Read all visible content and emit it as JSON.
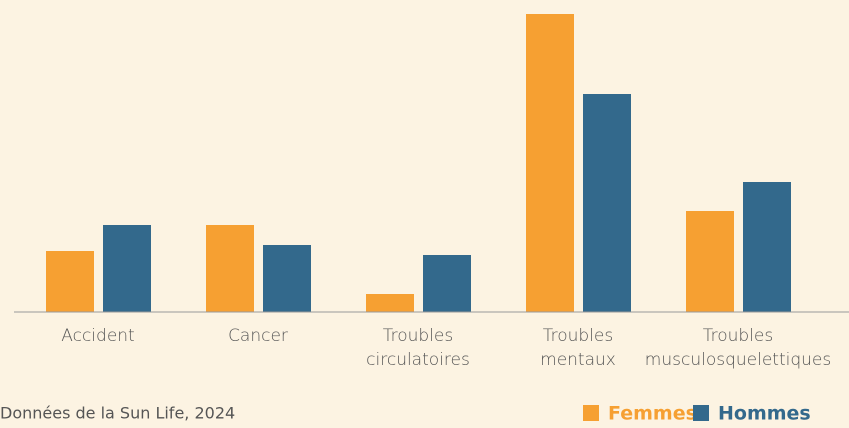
{
  "chart_data": {
    "type": "bar",
    "categories": [
      [
        "Accident"
      ],
      [
        "Cancer"
      ],
      [
        "Troubles",
        "circulatoires"
      ],
      [
        "Troubles",
        "mentaux"
      ],
      [
        "Troubles",
        "musculosquelettiques"
      ]
    ],
    "series": [
      {
        "name": "Femmes",
        "color": "#f6a032",
        "values": [
          61,
          87,
          18,
          298,
          101
        ]
      },
      {
        "name": "Hommes",
        "color": "#33698c",
        "values": [
          87,
          67,
          57,
          218,
          130
        ]
      }
    ],
    "ylim": [
      0,
      300
    ],
    "note": "Données de la Sun Life, 2024"
  }
}
